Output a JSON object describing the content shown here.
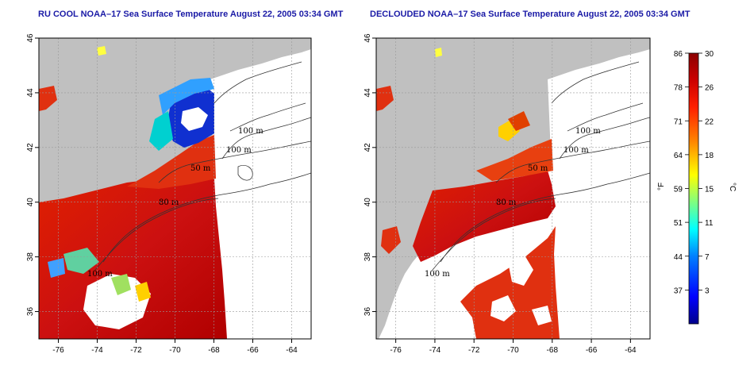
{
  "panels": [
    {
      "id": "ru-cool",
      "title": "RU COOL NOAA–17 Sea Surface Temperature August 22, 2005 03:34 GMT"
    },
    {
      "id": "declouded",
      "title": "DECLOUDED NOAA–17 Sea Surface Temperature August 22, 2005 03:34 GMT"
    }
  ],
  "map": {
    "lon_range": [
      -77,
      -63
    ],
    "lat_range": [
      35,
      46
    ],
    "lon_ticks": [
      "-76",
      "-74",
      "-72",
      "-70",
      "-68",
      "-66",
      "-64"
    ],
    "lat_ticks": [
      "36",
      "38",
      "40",
      "42",
      "44",
      "46"
    ],
    "land_color": "#c0c0c0",
    "contour_labels": [
      "100 m",
      "100 m",
      "50 m",
      "80 m",
      "100 m"
    ]
  },
  "colorbar": {
    "f_label": "°F",
    "c_label": "°C",
    "f_ticks": [
      "86",
      "78",
      "71",
      "64",
      "59",
      "51",
      "44",
      "37"
    ],
    "c_ticks": [
      "30",
      "26",
      "22",
      "18",
      "15",
      "11",
      "7",
      "3"
    ],
    "colors": [
      "#00008b",
      "#0000ff",
      "#0080ff",
      "#00ffff",
      "#80ff80",
      "#ffff00",
      "#ff8000",
      "#ff2000",
      "#cc0000",
      "#8b0000"
    ]
  }
}
